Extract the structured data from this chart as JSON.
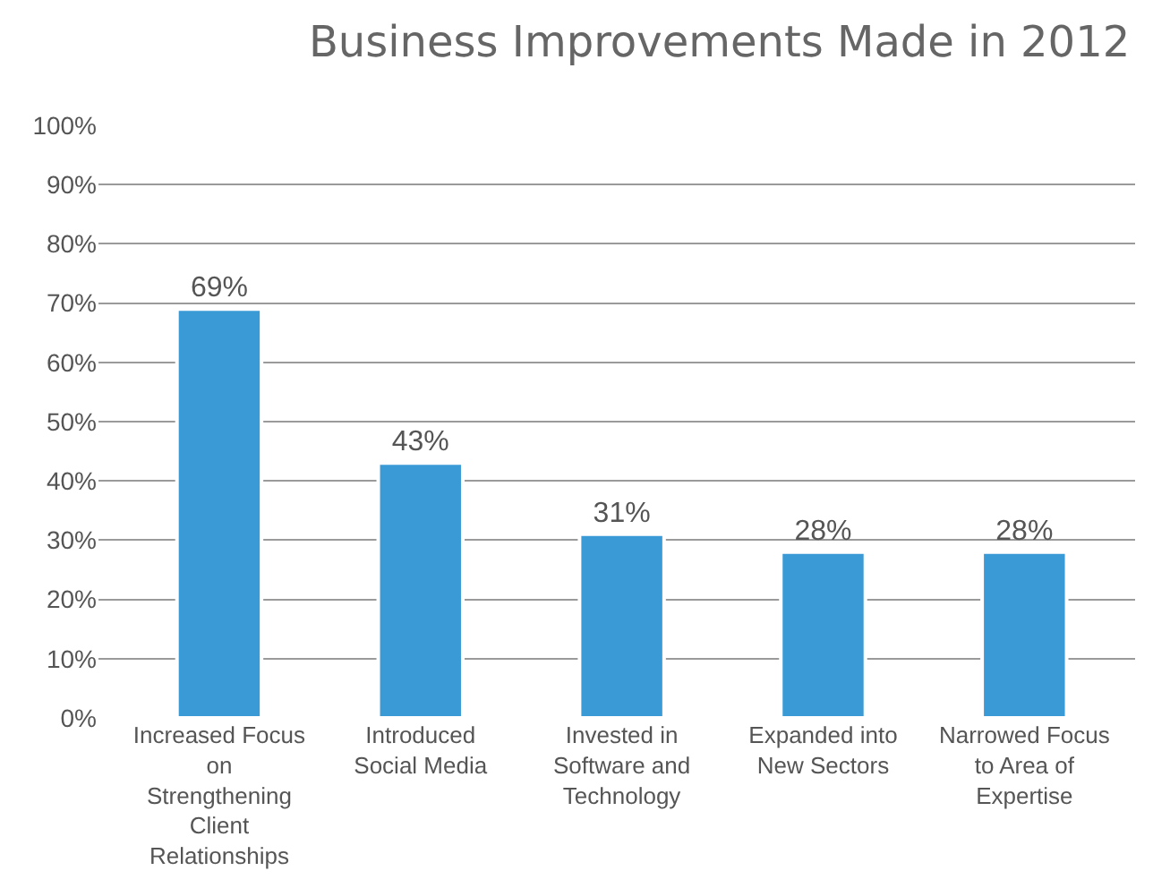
{
  "chart_data": {
    "type": "bar",
    "title": "Business Improvements Made in 2012",
    "categories": [
      "Increased Focus on Strengthening Client Relationships",
      "Introduced Social Media",
      "Invested in Software and Technology",
      "Expanded into New Sectors",
      "Narrowed Focus to Area of Expertise"
    ],
    "values": [
      69,
      43,
      31,
      28,
      28
    ],
    "value_labels": [
      "69%",
      "43%",
      "31%",
      "28%",
      "28%"
    ],
    "color": "#3a9ad6",
    "ylim": [
      0,
      100
    ],
    "yticks": [
      {
        "value": 0,
        "label": "0%"
      },
      {
        "value": 10,
        "label": "10%"
      },
      {
        "value": 20,
        "label": "20%"
      },
      {
        "value": 30,
        "label": "30%"
      },
      {
        "value": 40,
        "label": "40%"
      },
      {
        "value": 50,
        "label": "50%"
      },
      {
        "value": 60,
        "label": "60%"
      },
      {
        "value": 70,
        "label": "70%"
      },
      {
        "value": 80,
        "label": "80%"
      },
      {
        "value": 90,
        "label": "90%"
      },
      {
        "value": 100,
        "label": "100%"
      }
    ],
    "grid": "y"
  }
}
